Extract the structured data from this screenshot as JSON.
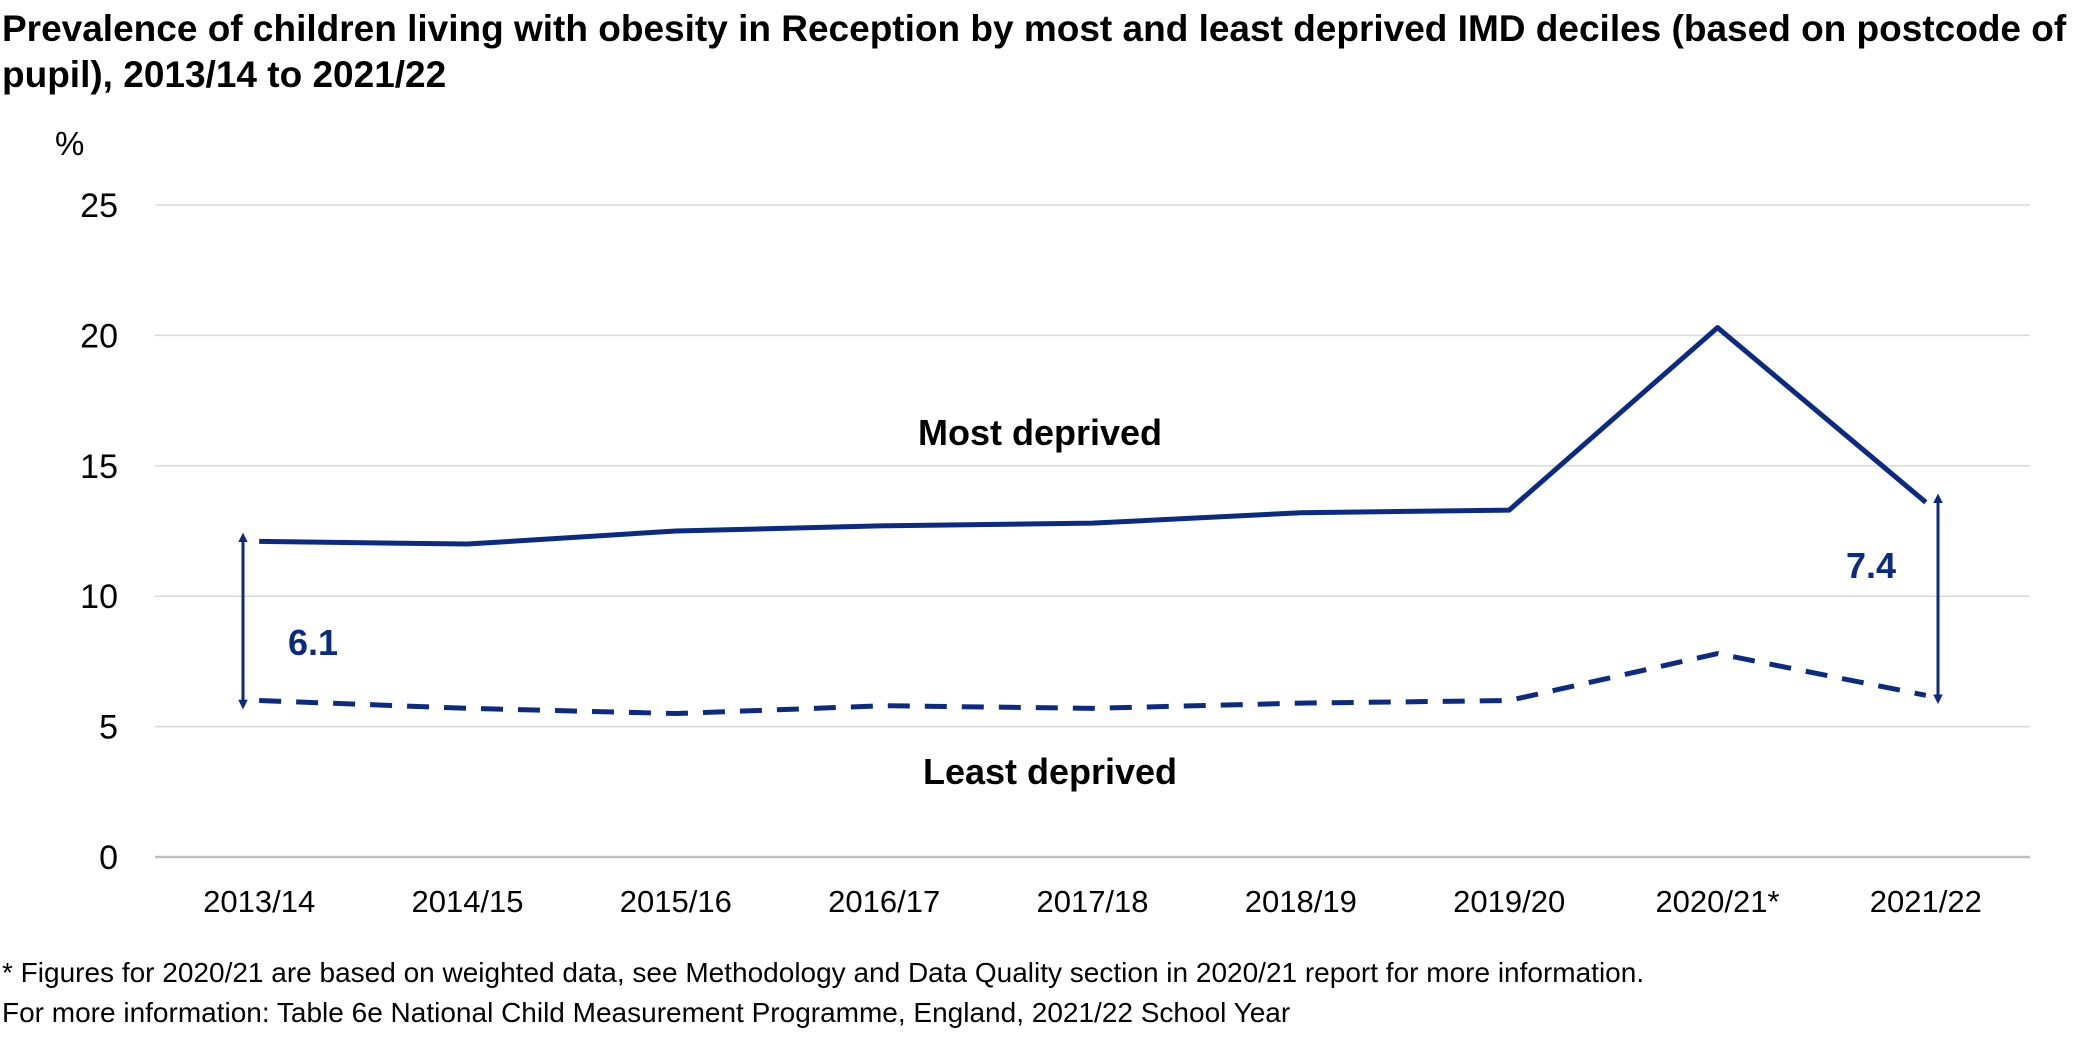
{
  "title": "Prevalence of children living with obesity in Reception by most and least deprived IMD deciles (based on postcode of pupil), 2013/14 to 2021/22",
  "notes": [
    "* Figures for 2020/21 are based on weighted data, see Methodology and Data Quality section in 2020/21 report for more information.",
    "For more information: Table 6e National Child Measurement Programme, England, 2021/22 School Year"
  ],
  "chart_data": {
    "type": "line",
    "ylabel": "%",
    "ylim": [
      0,
      25
    ],
    "yticks": [
      0,
      5,
      10,
      15,
      20,
      25
    ],
    "grid": true,
    "categories": [
      "2013/14",
      "2014/15",
      "2015/16",
      "2016/17",
      "2017/18",
      "2018/19",
      "2019/20",
      "2020/21*",
      "2021/22"
    ],
    "series": [
      {
        "name": "Most deprived",
        "style": "solid",
        "color": "#0b2b82",
        "values": [
          12.1,
          12.0,
          12.5,
          12.7,
          12.8,
          13.2,
          13.3,
          20.3,
          13.6
        ]
      },
      {
        "name": "Least deprived",
        "style": "dashed",
        "color": "#0b2b82",
        "values": [
          6.0,
          5.7,
          5.5,
          5.8,
          5.7,
          5.9,
          6.0,
          7.8,
          6.2
        ]
      }
    ],
    "annotations": [
      {
        "label": "6.1",
        "category": "2013/14",
        "from": 6.0,
        "to": 12.1
      },
      {
        "label": "7.4",
        "category": "2021/22",
        "from": 6.2,
        "to": 13.6
      }
    ]
  }
}
